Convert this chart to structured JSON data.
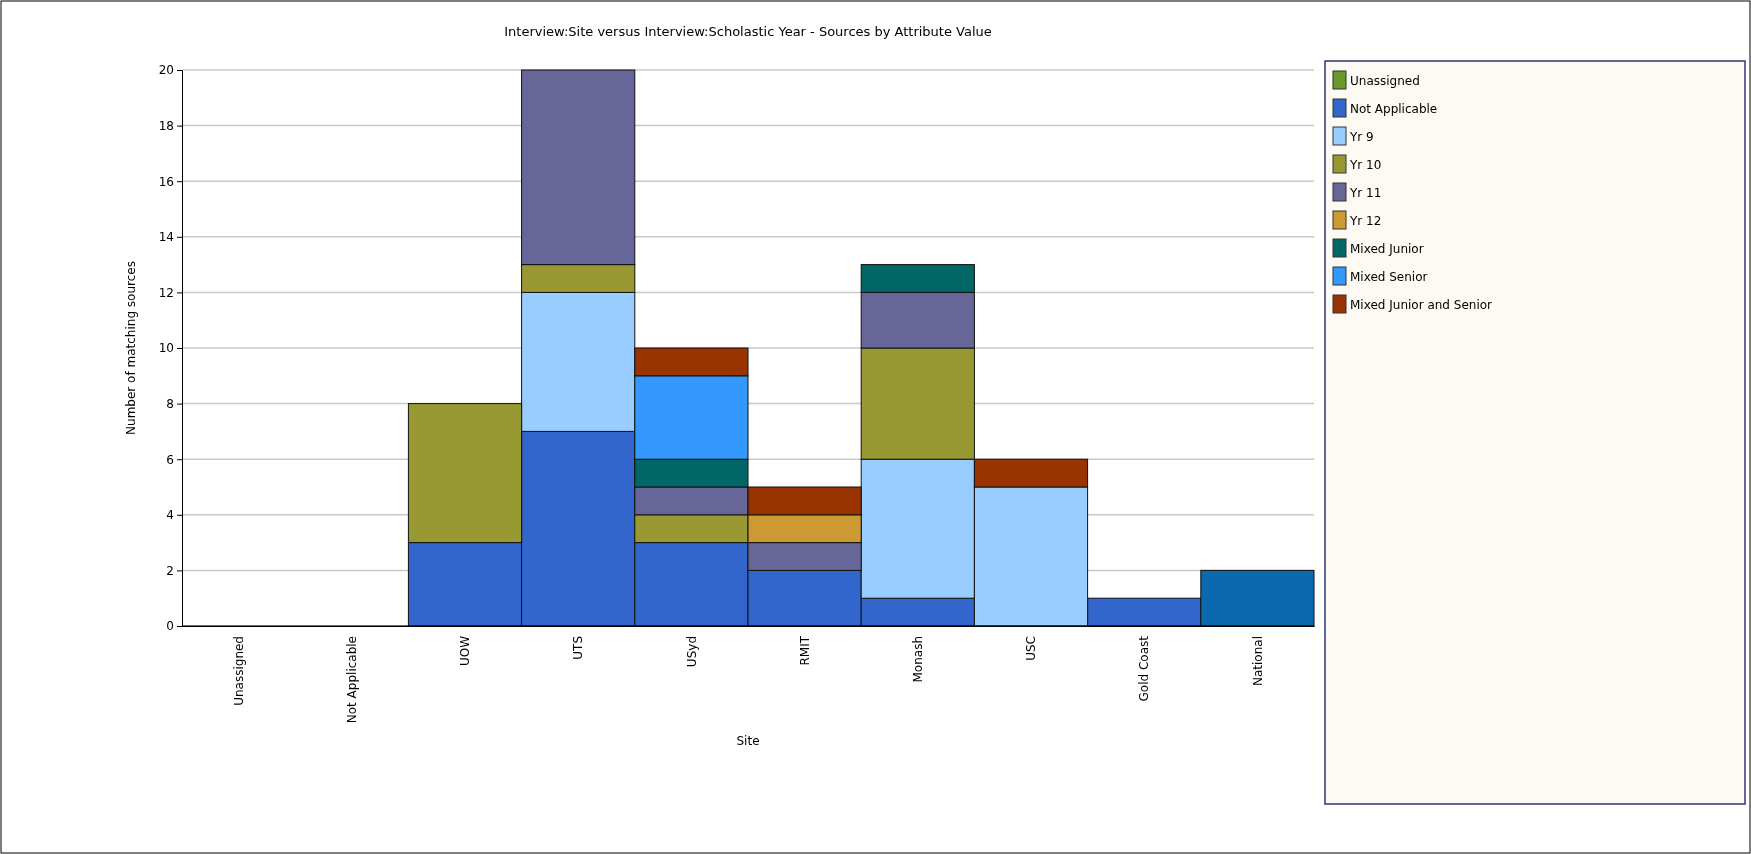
{
  "chart_data": {
    "type": "bar",
    "stacked": true,
    "title": "Interview:Site versus Interview:Scholastic Year - Sources by Attribute Value",
    "xlabel": "Site",
    "ylabel": "Number of matching sources",
    "categories": [
      "Unassigned",
      "Not Applicable",
      "UOW",
      "UTS",
      "USyd",
      "RMIT",
      "Monash",
      "USC",
      "Gold Coast",
      "National"
    ],
    "ylim": [
      0,
      20
    ],
    "yticks": [
      0,
      2,
      4,
      6,
      8,
      10,
      12,
      14,
      16,
      18,
      20
    ],
    "grid": "y",
    "legend": "right",
    "series": [
      {
        "name": "Unassigned",
        "color": "#6a9a2a",
        "values": [
          0,
          0,
          0,
          0,
          0,
          0,
          0,
          0,
          0,
          0
        ]
      },
      {
        "name": "Not Applicable",
        "color": "#3366cc",
        "colors": [
          "#3366cc",
          "#3366cc",
          "#3366cc",
          "#3366cc",
          "#3366cc",
          "#3366cc",
          "#3366cc",
          "#3366cc",
          "#3366cc",
          "#0a6aad"
        ],
        "values": [
          0,
          0,
          3,
          7,
          3,
          2,
          1,
          0,
          1,
          2
        ]
      },
      {
        "name": "Yr 9",
        "color": "#99ccff",
        "values": [
          0,
          0,
          0,
          5,
          0,
          0,
          5,
          5,
          0,
          0
        ]
      },
      {
        "name": "Yr 10",
        "color": "#999933",
        "values": [
          0,
          0,
          5,
          1,
          1,
          0,
          4,
          0,
          0,
          0
        ]
      },
      {
        "name": "Yr 11",
        "color": "#666699",
        "values": [
          0,
          0,
          0,
          7,
          1,
          1,
          2,
          0,
          0,
          0
        ]
      },
      {
        "name": "Yr 12",
        "color": "#cc9933",
        "values": [
          0,
          0,
          0,
          0,
          0,
          1,
          0,
          0,
          0,
          0
        ]
      },
      {
        "name": "Mixed Junior",
        "color": "#006666",
        "values": [
          0,
          0,
          0,
          0,
          1,
          0,
          1,
          0,
          0,
          0
        ]
      },
      {
        "name": "Mixed Senior",
        "color": "#3399ff",
        "values": [
          0,
          0,
          0,
          0,
          3,
          0,
          0,
          0,
          0,
          0
        ]
      },
      {
        "name": "Mixed Junior and Senior",
        "color": "#993300",
        "values": [
          0,
          0,
          0,
          0,
          1,
          1,
          0,
          1,
          0,
          0
        ]
      }
    ]
  }
}
